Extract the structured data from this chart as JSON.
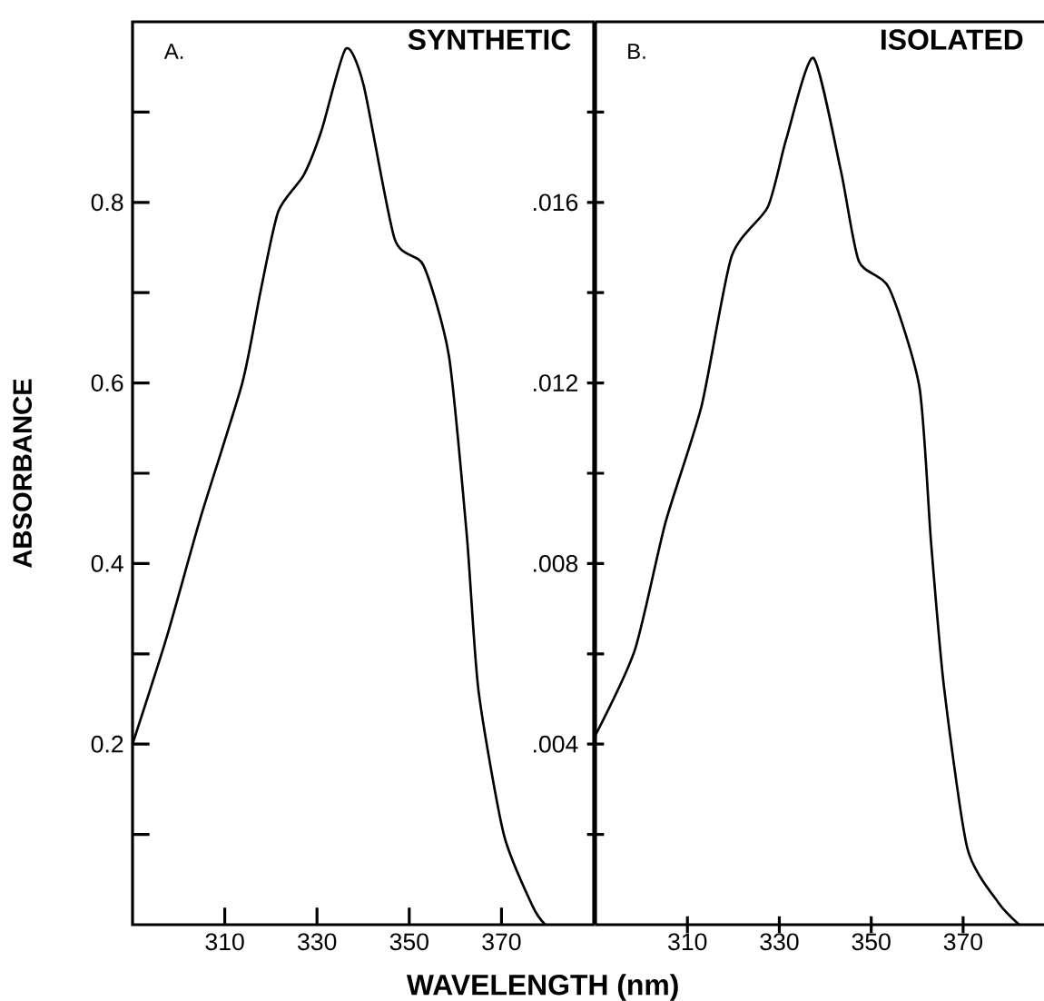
{
  "chart_data": [
    {
      "type": "line",
      "title": "SYNTHETIC",
      "annotations": [
        "A."
      ],
      "ylabel": "ABSORBANCE",
      "xlabel": "WAVELENGTH (nm)",
      "color": "#000000",
      "x": [
        290,
        297.5,
        304.7,
        313.8,
        317.7,
        321.6,
        327.1,
        331,
        336.2,
        340.1,
        346.8,
        353.1,
        358.6,
        362.5,
        365,
        370.5,
        376.8,
        379.5
      ],
      "values": [
        0.2,
        0.32,
        0.45,
        0.6,
        0.7,
        0.79,
        0.83,
        0.88,
        0.97,
        0.93,
        0.76,
        0.73,
        0.63,
        0.43,
        0.26,
        0.1,
        0.02,
        0
      ],
      "xlim": [
        290,
        390
      ],
      "ylim": [
        0,
        1.0
      ],
      "xticks": [
        310,
        330,
        350,
        370
      ],
      "yticks": [
        {
          "value": 0.1,
          "label": null
        },
        0.2,
        {
          "value": 0.3,
          "label": null
        },
        0.4,
        {
          "value": 0.5,
          "label": null
        },
        0.6,
        {
          "value": 0.7,
          "label": null
        },
        0.8,
        {
          "value": 0.9,
          "label": null
        }
      ]
    },
    {
      "type": "line",
      "title": "ISOLATED",
      "annotations": [
        "B."
      ],
      "color": "#000000",
      "x": [
        290,
        298.6,
        305.2,
        313.1,
        319.6,
        327.5,
        331.5,
        337.4,
        343.4,
        347.3,
        353.9,
        360.5,
        363,
        365.8,
        370.9,
        377.6,
        382.2
      ],
      "values": [
        0.0042,
        0.0061,
        0.0089,
        0.0115,
        0.0148,
        0.0159,
        0.0174,
        0.0192,
        0.0167,
        0.0147,
        0.0141,
        0.0119,
        0.0085,
        0.0053,
        0.0017,
        0.0005,
        0
      ],
      "xlim": [
        290,
        388
      ],
      "ylim": [
        0,
        0.02
      ],
      "xticks": [
        310,
        330,
        350,
        370
      ],
      "yticks": [
        {
          "value": 0.002,
          "label": null
        },
        {
          "value": 0.004,
          "label": ".004"
        },
        {
          "value": 0.006,
          "label": null
        },
        {
          "value": 0.008,
          "label": ".008"
        },
        {
          "value": 0.01,
          "label": null
        },
        {
          "value": 0.012,
          "label": ".012"
        },
        {
          "value": 0.014,
          "label": null
        },
        {
          "value": 0.016,
          "label": ".016"
        },
        {
          "value": 0.018,
          "label": null
        }
      ]
    }
  ]
}
